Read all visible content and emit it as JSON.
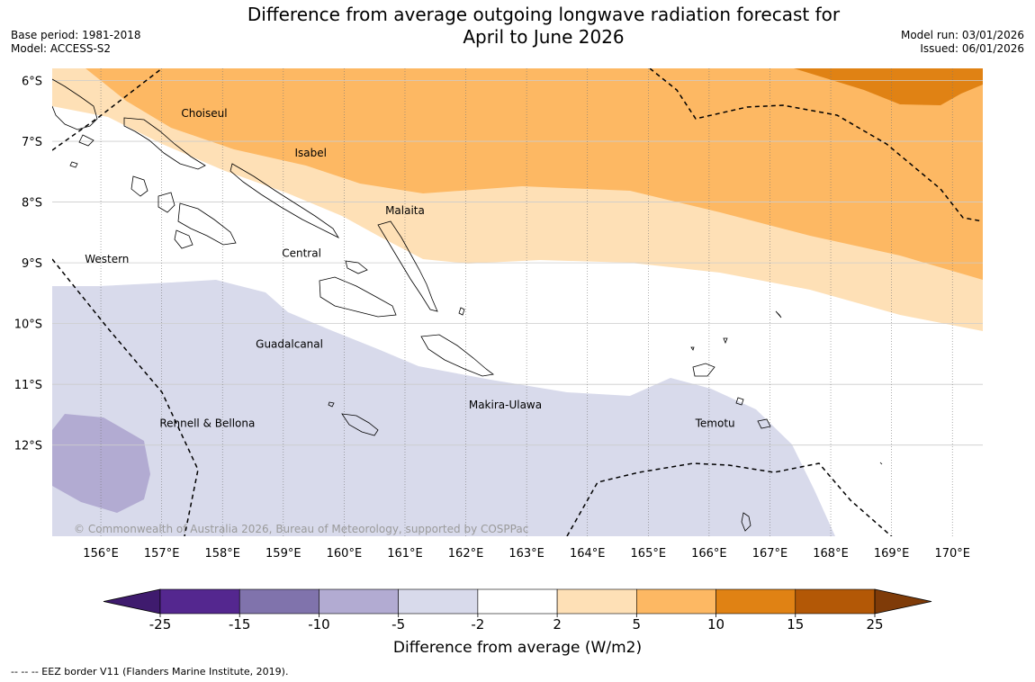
{
  "title": {
    "line1": "Difference from average outgoing longwave radiation forecast for",
    "line2": "April to June 2026"
  },
  "meta": {
    "base_period": "Base period: 1981-2018",
    "model": "Model: ACCESS-S2",
    "model_run": "Model run: 03/01/2026",
    "issued": "Issued: 06/01/2026"
  },
  "map": {
    "lat_labels": [
      "6°S",
      "7°S",
      "8°S",
      "9°S",
      "10°S",
      "11°S",
      "12°S"
    ],
    "lon_labels": [
      "156°E",
      "157°E",
      "158°E",
      "159°E",
      "160°E",
      "161°E",
      "162°E",
      "163°E",
      "164°E",
      "165°E",
      "166°E",
      "167°E",
      "168°E",
      "169°E",
      "170°E"
    ],
    "places": [
      {
        "name": "Choiseul",
        "lon": 157.7,
        "lat": -6.6
      },
      {
        "name": "Isabel",
        "lon": 159.45,
        "lat": -7.25
      },
      {
        "name": "Malaita",
        "lon": 161.0,
        "lat": -8.2
      },
      {
        "name": "Western",
        "lon": 156.1,
        "lat": -9.0
      },
      {
        "name": "Central",
        "lon": 159.3,
        "lat": -8.9
      },
      {
        "name": "Guadalcanal",
        "lon": 159.1,
        "lat": -10.4
      },
      {
        "name": "Makira-Ulawa",
        "lon": 162.65,
        "lat": -11.4
      },
      {
        "name": "Rennell & Bellona",
        "lon": 157.75,
        "lat": -11.7
      },
      {
        "name": "Temotu",
        "lon": 166.1,
        "lat": -11.7
      }
    ],
    "copyright": "© Commonwealth of Australia 2026, Bureau of Meteorology, supported by COSPPac"
  },
  "colorbar": {
    "ticks": [
      "-25",
      "-15",
      "-10",
      "-5",
      "-2",
      "2",
      "5",
      "10",
      "15",
      "25"
    ],
    "colors": [
      "#3f1b6e",
      "#54278f",
      "#8073ac",
      "#b2abd2",
      "#d8daeb",
      "#ffffff",
      "#fee0b6",
      "#fdb863",
      "#e08214",
      "#b35806",
      "#7f3b08"
    ],
    "label": "Difference from average (W/m2)"
  },
  "footnote": "--  --  -- EEZ border V11 (Flanders Marine Institute, 2019)."
}
